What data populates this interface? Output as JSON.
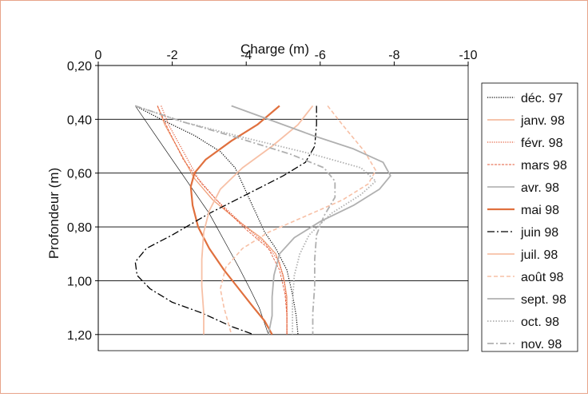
{
  "chart_data": {
    "type": "line",
    "xlabel": "Charge (m)",
    "ylabel": "Profondeur (m)",
    "xlim": [
      0,
      -10
    ],
    "ylim": [
      0.2,
      1.26
    ],
    "x_ticks": [
      0,
      -2,
      -4,
      -6,
      -8,
      -10
    ],
    "x_tick_labels": [
      "0",
      "-2",
      "-4",
      "-6",
      "-8",
      "-10"
    ],
    "y_ticks": [
      0.2,
      0.4,
      0.6,
      0.8,
      1.0,
      1.2
    ],
    "y_tick_labels": [
      "0,20",
      "0,40",
      "0,60",
      "0,80",
      "1,00",
      "1,20"
    ],
    "x_axis_position": "top",
    "y_axis_reversed": true,
    "horizontal_grid": true,
    "legend_placement": "right",
    "series": [
      {
        "name": "déc. 97",
        "color": "#000000",
        "dash": "1.2 1.6",
        "width": 1.2,
        "points": [
          [
            -1.0,
            0.35
          ],
          [
            -1.7,
            0.4
          ],
          [
            -2.6,
            0.46
          ],
          [
            -3.3,
            0.52
          ],
          [
            -3.7,
            0.58
          ],
          [
            -3.9,
            0.64
          ],
          [
            -4.1,
            0.7
          ],
          [
            -4.3,
            0.76
          ],
          [
            -4.5,
            0.82
          ],
          [
            -4.8,
            0.88
          ],
          [
            -5.1,
            0.96
          ],
          [
            -5.25,
            1.05
          ],
          [
            -5.35,
            1.13
          ],
          [
            -5.4,
            1.2
          ]
        ]
      },
      {
        "name": "janv. 98",
        "color": "#f0a07a",
        "dash": "",
        "width": 1.3,
        "points": [
          [
            -1.6,
            0.35
          ],
          [
            -1.8,
            0.42
          ],
          [
            -2.2,
            0.52
          ],
          [
            -2.6,
            0.62
          ],
          [
            -3.1,
            0.7
          ],
          [
            -3.8,
            0.78
          ],
          [
            -4.4,
            0.84
          ],
          [
            -4.8,
            0.9
          ],
          [
            -5.0,
            0.98
          ],
          [
            -5.1,
            1.06
          ],
          [
            -5.1,
            1.14
          ],
          [
            -5.1,
            1.2
          ]
        ]
      },
      {
        "name": "févr. 98",
        "color": "#e35a38",
        "dash": "1.2 1.6",
        "width": 1.2,
        "points": [
          [
            -1.7,
            0.35
          ],
          [
            -1.9,
            0.42
          ],
          [
            -2.3,
            0.52
          ],
          [
            -2.7,
            0.62
          ],
          [
            -3.2,
            0.7
          ],
          [
            -3.9,
            0.79
          ],
          [
            -4.5,
            0.86
          ],
          [
            -4.9,
            0.93
          ],
          [
            -5.05,
            1.02
          ],
          [
            -5.1,
            1.1
          ],
          [
            -5.1,
            1.2
          ]
        ]
      },
      {
        "name": "mars 98",
        "color": "#e35a38",
        "dash": "3 1.5",
        "width": 0.9,
        "points": [
          [
            -1.6,
            0.35
          ],
          [
            -1.9,
            0.44
          ],
          [
            -2.3,
            0.55
          ],
          [
            -2.8,
            0.64
          ],
          [
            -3.4,
            0.73
          ],
          [
            -4.0,
            0.81
          ],
          [
            -4.6,
            0.88
          ],
          [
            -4.9,
            0.96
          ],
          [
            -5.05,
            1.05
          ],
          [
            -5.1,
            1.13
          ],
          [
            -5.1,
            1.2
          ]
        ]
      },
      {
        "name": "avr. 98",
        "color": "#000000",
        "dash": "",
        "width": 0.6,
        "points": [
          [
            -1.0,
            0.35
          ],
          [
            -1.5,
            0.45
          ],
          [
            -2.0,
            0.55
          ],
          [
            -2.5,
            0.65
          ],
          [
            -3.0,
            0.75
          ],
          [
            -3.4,
            0.85
          ],
          [
            -3.8,
            0.95
          ],
          [
            -4.1,
            1.03
          ],
          [
            -4.35,
            1.1
          ],
          [
            -4.5,
            1.16
          ],
          [
            -4.6,
            1.2
          ]
        ]
      },
      {
        "name": "mai 98",
        "color": "#e0703e",
        "dash": "",
        "width": 2.2,
        "points": [
          [
            -4.9,
            0.35
          ],
          [
            -4.3,
            0.42
          ],
          [
            -3.6,
            0.48
          ],
          [
            -2.9,
            0.55
          ],
          [
            -2.6,
            0.6
          ],
          [
            -2.5,
            0.65
          ],
          [
            -2.55,
            0.72
          ],
          [
            -2.7,
            0.8
          ],
          [
            -3.0,
            0.88
          ],
          [
            -3.4,
            0.96
          ],
          [
            -3.8,
            1.03
          ],
          [
            -4.2,
            1.1
          ],
          [
            -4.5,
            1.15
          ],
          [
            -4.7,
            1.2
          ]
        ]
      },
      {
        "name": "juin 98",
        "color": "#000000",
        "dash": "9 3 2 3",
        "width": 1.3,
        "points": [
          [
            -5.9,
            0.35
          ],
          [
            -5.9,
            0.42
          ],
          [
            -5.85,
            0.5
          ],
          [
            -5.6,
            0.56
          ],
          [
            -5.0,
            0.61
          ],
          [
            -4.0,
            0.68
          ],
          [
            -3.0,
            0.75
          ],
          [
            -2.0,
            0.83
          ],
          [
            -1.3,
            0.88
          ],
          [
            -1.0,
            0.93
          ],
          [
            -1.05,
            0.98
          ],
          [
            -1.4,
            1.03
          ],
          [
            -2.0,
            1.08
          ],
          [
            -2.8,
            1.12
          ],
          [
            -3.6,
            1.17
          ],
          [
            -4.2,
            1.2
          ]
        ]
      },
      {
        "name": "juil. 98",
        "color": "#f7c0a6",
        "dash": "",
        "width": 1.8,
        "points": [
          [
            -5.8,
            0.35
          ],
          [
            -5.4,
            0.42
          ],
          [
            -4.7,
            0.5
          ],
          [
            -3.9,
            0.58
          ],
          [
            -3.3,
            0.66
          ],
          [
            -3.0,
            0.74
          ],
          [
            -2.85,
            0.82
          ],
          [
            -2.8,
            0.92
          ],
          [
            -2.8,
            1.02
          ],
          [
            -2.85,
            1.12
          ],
          [
            -2.85,
            1.2
          ]
        ]
      },
      {
        "name": "août 98",
        "color": "#f7c0a6",
        "dash": "5 3",
        "width": 1.6,
        "points": [
          [
            -6.2,
            0.35
          ],
          [
            -6.6,
            0.42
          ],
          [
            -7.2,
            0.52
          ],
          [
            -7.5,
            0.59
          ],
          [
            -7.3,
            0.64
          ],
          [
            -6.6,
            0.7
          ],
          [
            -5.6,
            0.76
          ],
          [
            -4.6,
            0.82
          ],
          [
            -3.9,
            0.88
          ],
          [
            -3.45,
            0.95
          ],
          [
            -3.3,
            1.03
          ],
          [
            -3.4,
            1.1
          ],
          [
            -3.6,
            1.2
          ]
        ]
      },
      {
        "name": "sept. 98",
        "color": "#b0b0b0",
        "dash": "",
        "width": 1.8,
        "points": [
          [
            -3.6,
            0.35
          ],
          [
            -4.6,
            0.4
          ],
          [
            -5.8,
            0.46
          ],
          [
            -6.9,
            0.51
          ],
          [
            -7.7,
            0.56
          ],
          [
            -7.9,
            0.61
          ],
          [
            -7.6,
            0.66
          ],
          [
            -6.9,
            0.72
          ],
          [
            -6.0,
            0.78
          ],
          [
            -5.3,
            0.84
          ],
          [
            -4.9,
            0.9
          ],
          [
            -4.75,
            0.98
          ],
          [
            -4.7,
            1.06
          ],
          [
            -4.7,
            1.13
          ],
          [
            -4.6,
            1.2
          ]
        ]
      },
      {
        "name": "oct. 98",
        "color": "#b0b0b0",
        "dash": "1.5 2",
        "width": 1.8,
        "points": [
          [
            -1.0,
            0.35
          ],
          [
            -2.3,
            0.41
          ],
          [
            -4.0,
            0.47
          ],
          [
            -5.8,
            0.53
          ],
          [
            -7.1,
            0.58
          ],
          [
            -7.5,
            0.63
          ],
          [
            -7.1,
            0.68
          ],
          [
            -6.3,
            0.75
          ],
          [
            -5.7,
            0.83
          ],
          [
            -5.45,
            0.9
          ],
          [
            -5.3,
            0.98
          ],
          [
            -5.25,
            1.08
          ],
          [
            -5.25,
            1.2
          ]
        ]
      },
      {
        "name": "nov. 98",
        "color": "#b0b0b0",
        "dash": "8 3 2 3",
        "width": 1.8,
        "points": [
          [
            -1.0,
            0.35
          ],
          [
            -2.3,
            0.41
          ],
          [
            -3.8,
            0.47
          ],
          [
            -5.2,
            0.53
          ],
          [
            -6.1,
            0.58
          ],
          [
            -6.4,
            0.63
          ],
          [
            -6.4,
            0.69
          ],
          [
            -6.1,
            0.76
          ],
          [
            -5.9,
            0.83
          ],
          [
            -5.85,
            0.92
          ],
          [
            -5.85,
            1.02
          ],
          [
            -5.8,
            1.12
          ],
          [
            -5.8,
            1.2
          ]
        ]
      }
    ]
  }
}
